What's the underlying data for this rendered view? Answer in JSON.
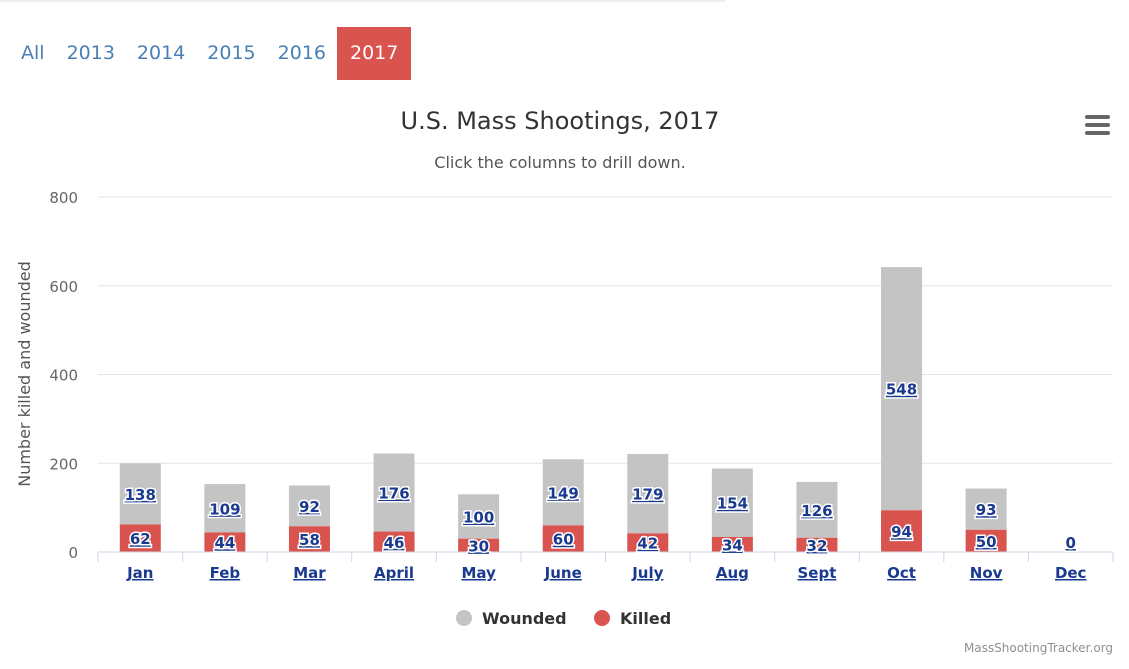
{
  "tabs": [
    {
      "label": "All",
      "active": false
    },
    {
      "label": "2013",
      "active": false
    },
    {
      "label": "2014",
      "active": false
    },
    {
      "label": "2015",
      "active": false
    },
    {
      "label": "2016",
      "active": false
    },
    {
      "label": "2017",
      "active": true
    }
  ],
  "menu_icon": "hamburger-menu-icon",
  "credit": "MassShootingTracker.org",
  "colors": {
    "wounded": "#c4c4c4",
    "killed": "#d9534f",
    "tab_text": "#4a7fb5",
    "tab_active": "#d9534f",
    "label_text": "#1a3a8f"
  },
  "chart_data": {
    "type": "bar",
    "stacked": true,
    "title": "U.S. Mass Shootings, 2017",
    "subtitle": "Click the columns to drill down.",
    "xlabel": "",
    "ylabel": "Number killed and wounded",
    "ylim": [
      0,
      800
    ],
    "yticks": [
      0,
      200,
      400,
      600,
      800
    ],
    "grid": true,
    "legend_position": "bottom-center",
    "categories": [
      "Jan",
      "Feb",
      "Mar",
      "April",
      "May",
      "June",
      "July",
      "Aug",
      "Sept",
      "Oct",
      "Nov",
      "Dec"
    ],
    "series": [
      {
        "name": "Wounded",
        "values": [
          138,
          109,
          92,
          176,
          100,
          149,
          179,
          154,
          126,
          548,
          93,
          0
        ]
      },
      {
        "name": "Killed",
        "values": [
          62,
          44,
          58,
          46,
          30,
          60,
          42,
          34,
          32,
          94,
          50,
          0
        ]
      }
    ],
    "point_labels": [
      {
        "wounded": "138",
        "killed": "62"
      },
      {
        "wounded": "109",
        "killed": "44"
      },
      {
        "wounded": "92",
        "killed": "58"
      },
      {
        "wounded": "176",
        "killed": "46"
      },
      {
        "wounded": "100",
        "killed": "30"
      },
      {
        "wounded": "149",
        "killed": "60"
      },
      {
        "wounded": "179",
        "killed": "42"
      },
      {
        "wounded": "154",
        "killed": "34"
      },
      {
        "wounded": "126",
        "killed": "32"
      },
      {
        "wounded": "548",
        "killed": "94"
      },
      {
        "wounded": "93",
        "killed": "50"
      },
      {
        "total": "0"
      }
    ]
  }
}
